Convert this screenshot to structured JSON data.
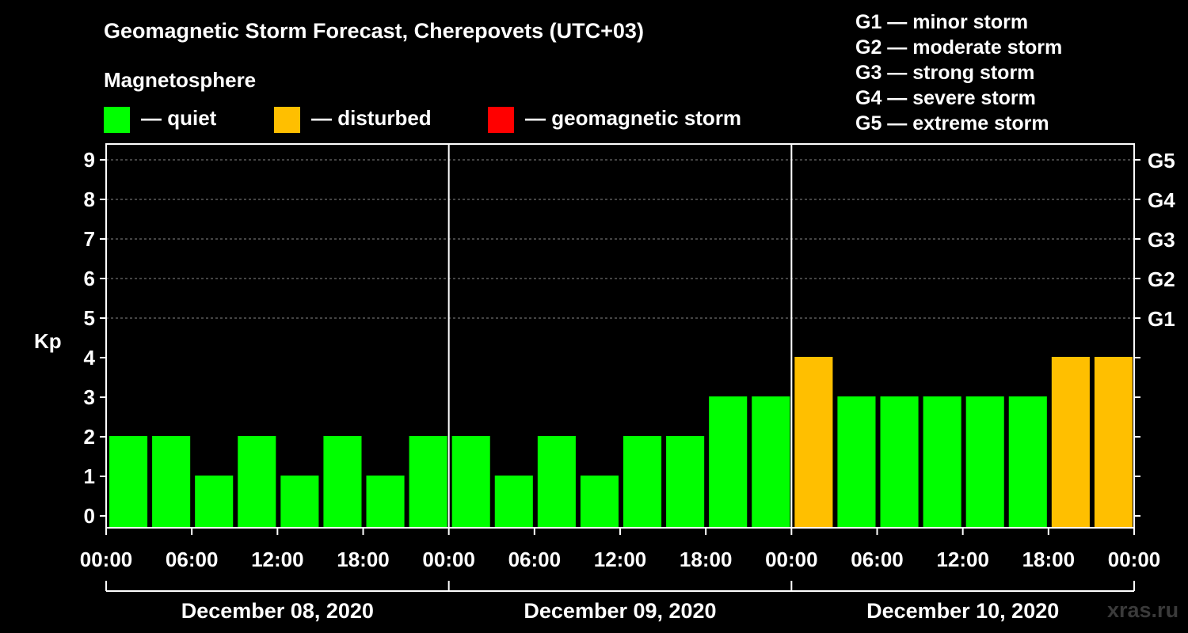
{
  "title": "Geomagnetic Storm Forecast, Cherepovets (UTC+03)",
  "subtitle": "Magnetosphere",
  "legend": [
    {
      "label": "— quiet",
      "color": "#00ff00"
    },
    {
      "label": "— disturbed",
      "color": "#ffbf00"
    },
    {
      "label": "— geomagnetic storm",
      "color": "#ff0000"
    }
  ],
  "g_scale": [
    {
      "label": "G1 — minor storm"
    },
    {
      "label": "G2 — moderate storm"
    },
    {
      "label": "G3 — strong storm"
    },
    {
      "label": "G4 — severe storm"
    },
    {
      "label": "G5 — extreme storm"
    }
  ],
  "watermark": "xras.ru",
  "colors": {
    "background": "#000000",
    "foreground": "#ffffff",
    "quiet": "#00ff00",
    "disturbed": "#ffbf00",
    "storm": "#ff0000",
    "grid": "#888888"
  },
  "chart_data": {
    "type": "bar",
    "title": "Geomagnetic Storm Forecast, Cherepovets (UTC+03)",
    "ylabel": "Kp",
    "ylim": [
      0,
      9
    ],
    "y_ticks": [
      "0",
      "1",
      "2",
      "3",
      "4",
      "5",
      "6",
      "7",
      "8",
      "9"
    ],
    "right_axis_labels": [
      {
        "value": 5,
        "label": "G1"
      },
      {
        "value": 6,
        "label": "G2"
      },
      {
        "value": 7,
        "label": "G3"
      },
      {
        "value": 8,
        "label": "G4"
      },
      {
        "value": 9,
        "label": "G5"
      }
    ],
    "x_tick_labels": [
      "00:00",
      "06:00",
      "12:00",
      "18:00",
      "00:00",
      "06:00",
      "12:00",
      "18:00",
      "00:00",
      "06:00",
      "12:00",
      "18:00",
      "00:00"
    ],
    "days": [
      "December 08, 2020",
      "December 09, 2020",
      "December 10, 2020"
    ],
    "interval_hours": 3,
    "values": [
      2,
      2,
      1,
      2,
      1,
      2,
      1,
      2,
      2,
      1,
      2,
      1,
      2,
      2,
      3,
      3,
      4,
      3,
      3,
      3,
      3,
      3,
      4,
      4
    ],
    "status": [
      "quiet",
      "quiet",
      "quiet",
      "quiet",
      "quiet",
      "quiet",
      "quiet",
      "quiet",
      "quiet",
      "quiet",
      "quiet",
      "quiet",
      "quiet",
      "quiet",
      "quiet",
      "quiet",
      "disturbed",
      "quiet",
      "quiet",
      "quiet",
      "quiet",
      "quiet",
      "disturbed",
      "disturbed"
    ],
    "grid": true
  }
}
